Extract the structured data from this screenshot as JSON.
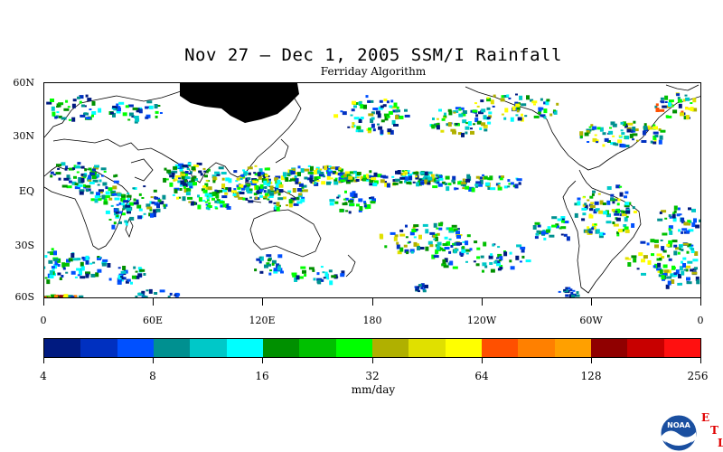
{
  "title": "Nov 27 – Dec 1, 2005 SSM/I Rainfall",
  "subtitle": "Ferriday Algorithm",
  "lat_labels": [
    "60N",
    "30N",
    "EQ",
    "30S",
    "60S"
  ],
  "lon_labels": [
    "0",
    "60E",
    "120E",
    "180",
    "120W",
    "60W",
    "0"
  ],
  "colorbar": {
    "colors": [
      "#001a80",
      "#0030c0",
      "#0050ff",
      "#009090",
      "#00c8c8",
      "#00ffff",
      "#009000",
      "#00c000",
      "#00ff00",
      "#b0b000",
      "#e0e000",
      "#ffff00",
      "#ff5000",
      "#ff8000",
      "#ffa000",
      "#900000",
      "#c80000",
      "#ff1010"
    ],
    "tick_labels": [
      "4",
      "8",
      "16",
      "32",
      "64",
      "128",
      "256"
    ],
    "units": "mm/day"
  },
  "logo": {
    "name": "noaa-logo",
    "text": "NOAA",
    "letters": [
      "E",
      "T",
      "L"
    ]
  }
}
